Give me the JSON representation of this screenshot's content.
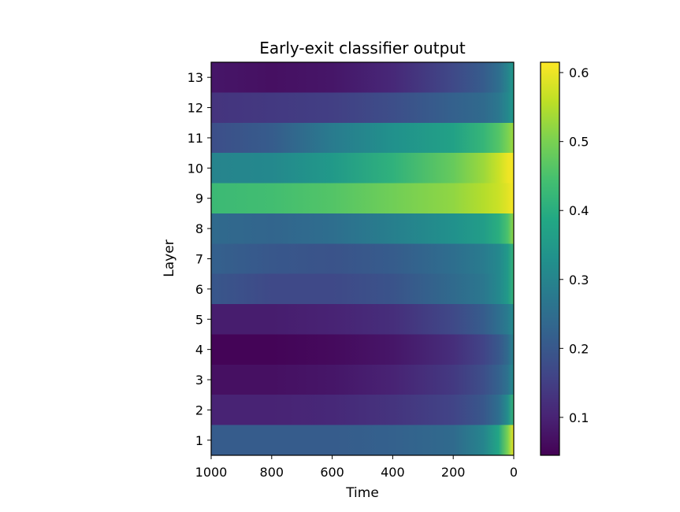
{
  "chart_data": {
    "type": "heatmap",
    "title": "Early-exit classifier output",
    "xlabel": "Time",
    "ylabel": "Layer",
    "x_ticks": [
      "1000",
      "800",
      "600",
      "400",
      "200",
      "0"
    ],
    "x_tick_values": [
      1000,
      800,
      600,
      400,
      200,
      0
    ],
    "xlim": [
      1000,
      0
    ],
    "x_inverted": true,
    "layers": [
      1,
      2,
      3,
      4,
      5,
      6,
      7,
      8,
      9,
      10,
      11,
      12,
      13
    ],
    "y_ticks": [
      "1",
      "2",
      "3",
      "4",
      "5",
      "6",
      "7",
      "8",
      "9",
      "10",
      "11",
      "12",
      "13"
    ],
    "colorbar": {
      "colormap": "viridis",
      "range": [
        0.045,
        0.615
      ],
      "ticks": [
        "0.1",
        "0.2",
        "0.3",
        "0.4",
        "0.5",
        "0.6"
      ],
      "tick_values": [
        0.1,
        0.2,
        0.3,
        0.4,
        0.5,
        0.6
      ]
    },
    "time_samples": [
      1000,
      800,
      600,
      400,
      200,
      100,
      50,
      20,
      0
    ],
    "rows": [
      {
        "layer": 1,
        "values": [
          0.21,
          0.21,
          0.21,
          0.22,
          0.24,
          0.3,
          0.38,
          0.5,
          0.6
        ]
      },
      {
        "layer": 2,
        "values": [
          0.1,
          0.1,
          0.11,
          0.13,
          0.16,
          0.2,
          0.25,
          0.32,
          0.42
        ]
      },
      {
        "layer": 3,
        "values": [
          0.07,
          0.07,
          0.08,
          0.1,
          0.14,
          0.18,
          0.22,
          0.26,
          0.32
        ]
      },
      {
        "layer": 4,
        "values": [
          0.05,
          0.05,
          0.06,
          0.08,
          0.12,
          0.16,
          0.2,
          0.24,
          0.3
        ]
      },
      {
        "layer": 5,
        "values": [
          0.09,
          0.09,
          0.1,
          0.12,
          0.17,
          0.21,
          0.25,
          0.28,
          0.32
        ]
      },
      {
        "layer": 6,
        "values": [
          0.2,
          0.17,
          0.17,
          0.19,
          0.24,
          0.27,
          0.31,
          0.35,
          0.42
        ]
      },
      {
        "layer": 7,
        "values": [
          0.22,
          0.2,
          0.19,
          0.21,
          0.25,
          0.28,
          0.31,
          0.35,
          0.42
        ]
      },
      {
        "layer": 8,
        "values": [
          0.24,
          0.23,
          0.25,
          0.29,
          0.33,
          0.36,
          0.4,
          0.45,
          0.52
        ]
      },
      {
        "layer": 9,
        "values": [
          0.43,
          0.44,
          0.46,
          0.49,
          0.52,
          0.55,
          0.57,
          0.59,
          0.61
        ]
      },
      {
        "layer": 10,
        "values": [
          0.3,
          0.31,
          0.35,
          0.41,
          0.48,
          0.53,
          0.57,
          0.6,
          0.61
        ]
      },
      {
        "layer": 11,
        "values": [
          0.18,
          0.21,
          0.28,
          0.33,
          0.37,
          0.42,
          0.46,
          0.5,
          0.53
        ]
      },
      {
        "layer": 12,
        "values": [
          0.13,
          0.14,
          0.15,
          0.18,
          0.22,
          0.24,
          0.27,
          0.31,
          0.35
        ]
      },
      {
        "layer": 13,
        "values": [
          0.08,
          0.07,
          0.08,
          0.11,
          0.17,
          0.21,
          0.25,
          0.3,
          0.35
        ]
      }
    ],
    "grid": false
  }
}
